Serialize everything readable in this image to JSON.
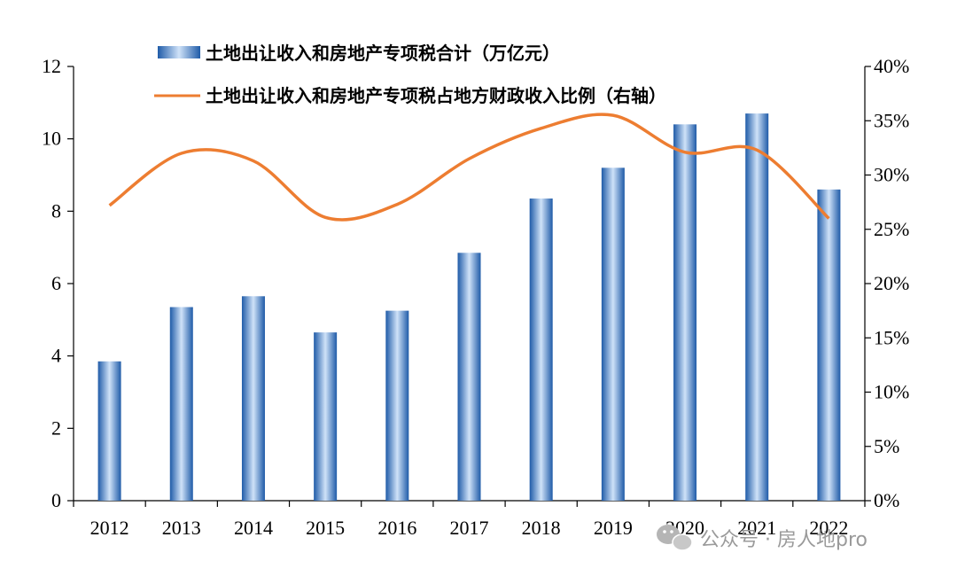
{
  "chart_data": {
    "type": "bar",
    "categories": [
      "2012",
      "2013",
      "2014",
      "2015",
      "2016",
      "2017",
      "2018",
      "2019",
      "2020",
      "2021",
      "2022"
    ],
    "series": [
      {
        "name": "土地出让收入和房地产专项税合计（万亿元）",
        "type": "bar",
        "axis": "left",
        "values": [
          3.85,
          5.35,
          5.65,
          4.65,
          5.25,
          6.85,
          8.35,
          9.2,
          10.4,
          10.7,
          8.6
        ]
      },
      {
        "name": "土地出让收入和房地产专项税占地方财政收入比例（右轴）",
        "type": "line",
        "axis": "right",
        "values": [
          0.272,
          0.32,
          0.313,
          0.261,
          0.273,
          0.315,
          0.343,
          0.355,
          0.321,
          0.323,
          0.26
        ]
      }
    ],
    "y_left": {
      "min": 0,
      "max": 12,
      "ticks": [
        "0",
        "2",
        "4",
        "6",
        "8",
        "10",
        "12"
      ]
    },
    "y_right": {
      "min": 0,
      "max": 0.4,
      "ticks": [
        "0%",
        "5%",
        "10%",
        "15%",
        "20%",
        "25%",
        "30%",
        "35%",
        "40%"
      ]
    },
    "grid": false,
    "legend_position": "top",
    "colors": {
      "bar": "#3a78c6",
      "bar_light": "#cfe2f8",
      "line": "#ed7d31",
      "axis": "#000000"
    }
  },
  "watermark": {
    "icon": "wechat-icon",
    "text": "公众号 · 房人地pro"
  }
}
